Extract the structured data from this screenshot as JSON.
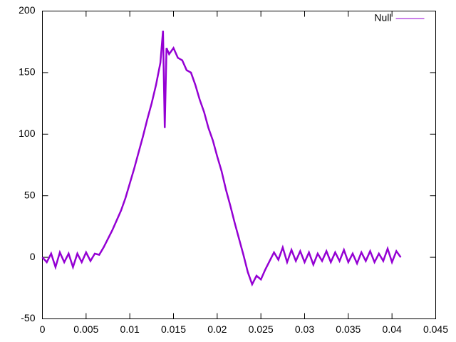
{
  "chart_data": {
    "type": "line",
    "x": [
      0,
      0.0005,
      0.001,
      0.0015,
      0.002,
      0.0025,
      0.003,
      0.0035,
      0.004,
      0.0045,
      0.005,
      0.0055,
      0.006,
      0.0065,
      0.007,
      0.0075,
      0.008,
      0.0085,
      0.009,
      0.0095,
      0.01,
      0.0105,
      0.011,
      0.0115,
      0.012,
      0.0125,
      0.013,
      0.0135,
      0.0138,
      0.014,
      0.0142,
      0.0145,
      0.015,
      0.0155,
      0.016,
      0.0165,
      0.017,
      0.0175,
      0.018,
      0.0185,
      0.019,
      0.0195,
      0.02,
      0.0205,
      0.021,
      0.0215,
      0.022,
      0.0225,
      0.023,
      0.0235,
      0.024,
      0.0245,
      0.025,
      0.0255,
      0.026,
      0.0265,
      0.027,
      0.0275,
      0.028,
      0.0285,
      0.029,
      0.0295,
      0.03,
      0.0305,
      0.031,
      0.0315,
      0.032,
      0.0325,
      0.033,
      0.0335,
      0.034,
      0.0345,
      0.035,
      0.0355,
      0.036,
      0.0365,
      0.037,
      0.0375,
      0.038,
      0.0385,
      0.039,
      0.0395,
      0.04,
      0.0405,
      0.041
    ],
    "series": [
      {
        "name": "Null",
        "color": "#9400d3",
        "values": [
          0,
          -4,
          3,
          -8,
          4,
          -4,
          3,
          -8,
          3,
          -4,
          4,
          -3,
          3,
          2,
          8,
          15,
          22,
          30,
          38,
          48,
          60,
          72,
          85,
          98,
          112,
          125,
          140,
          158,
          184,
          105,
          170,
          165,
          170,
          162,
          160,
          152,
          150,
          140,
          128,
          118,
          105,
          95,
          82,
          70,
          55,
          42,
          28,
          15,
          2,
          -12,
          -22,
          -15,
          -18,
          -10,
          -3,
          4,
          -2,
          8,
          -4,
          6,
          -3,
          5,
          -4,
          4,
          -6,
          3,
          -3,
          5,
          -4,
          4,
          -3,
          6,
          -4,
          3,
          -5,
          4,
          -3,
          5,
          -4,
          3,
          -3,
          7,
          -4,
          5,
          0
        ]
      }
    ],
    "xlim": [
      0,
      0.045
    ],
    "ylim": [
      -50,
      200
    ],
    "xticks": [
      0,
      0.005,
      0.01,
      0.015,
      0.02,
      0.025,
      0.03,
      0.035,
      0.04,
      0.045
    ],
    "yticks": [
      -50,
      0,
      50,
      100,
      150,
      200
    ],
    "legend": "top-right"
  }
}
